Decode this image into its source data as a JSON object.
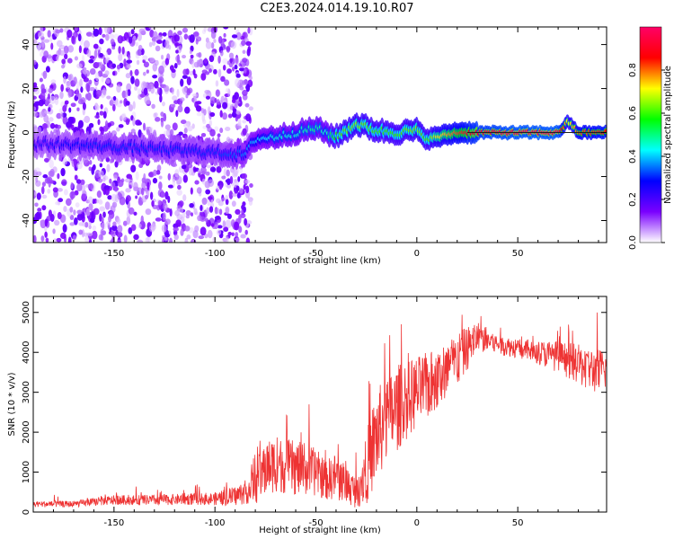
{
  "title": "C2E3.2024.014.19.10.R07",
  "chart_data": [
    {
      "type": "heatmap",
      "xlabel": "Height of straight line (km)",
      "ylabel": "Frequency (Hz)",
      "xlim": [
        -190,
        94
      ],
      "ylim": [
        -50,
        48
      ],
      "xticks": [
        -150,
        -100,
        -50,
        0,
        50
      ],
      "yticks": [
        -40,
        -20,
        0,
        20,
        40
      ],
      "xtick_labels": [
        "-150",
        "-100",
        "-50",
        "0",
        "50"
      ],
      "ytick_labels": [
        "-40",
        "-20",
        "0",
        "20",
        "40"
      ],
      "ridge": {
        "x": [
          -190,
          -160,
          -140,
          -120,
          -100,
          -85,
          -80,
          -70,
          -60,
          -50,
          -45,
          -40,
          -30,
          -20,
          -10,
          0,
          5,
          10,
          20,
          30,
          50,
          70,
          75,
          80,
          94
        ],
        "y": [
          -5,
          -6,
          -7,
          -8,
          -9,
          -10,
          -3,
          -2,
          0,
          2,
          0,
          -2,
          4,
          1,
          0,
          1,
          -3,
          -2,
          0,
          0,
          0,
          0,
          5,
          0,
          0
        ],
        "amplitude": [
          0.25,
          0.3,
          0.3,
          0.3,
          0.3,
          0.35,
          0.4,
          0.45,
          0.45,
          0.5,
          0.45,
          0.6,
          0.65,
          0.6,
          0.6,
          0.65,
          0.6,
          0.7,
          0.8,
          0.9,
          0.95,
          0.95,
          0.7,
          0.8,
          0.85
        ]
      }
    },
    {
      "type": "line",
      "xlabel": "Height of straight line (km)",
      "ylabel": "SNR (10 * v/v)",
      "xlim": [
        -190,
        94
      ],
      "ylim": [
        0,
        5400
      ],
      "xticks": [
        -150,
        -100,
        -50,
        0,
        50
      ],
      "yticks": [
        0,
        1000,
        2000,
        3000,
        4000,
        5000
      ],
      "xtick_labels": [
        "-150",
        "-100",
        "-50",
        "0",
        "50"
      ],
      "ytick_labels": [
        "0",
        "1000",
        "2000",
        "3000",
        "4000",
        "5000"
      ],
      "series": [
        {
          "name": "SNR",
          "color": "#ee3333",
          "x": [
            -190,
            -170,
            -150,
            -130,
            -110,
            -100,
            -90,
            -85,
            -80,
            -75,
            -70,
            -60,
            -50,
            -45,
            -40,
            -35,
            -30,
            -25,
            -20,
            -15,
            -10,
            -5,
            0,
            10,
            20,
            30,
            40,
            50,
            60,
            70,
            80,
            90,
            94
          ],
          "y": [
            200,
            200,
            300,
            300,
            330,
            330,
            400,
            500,
            700,
            1100,
            1200,
            1100,
            1000,
            800,
            900,
            700,
            500,
            1100,
            1900,
            2300,
            2600,
            2800,
            3000,
            3300,
            3800,
            4400,
            4200,
            4100,
            4000,
            3900,
            3700,
            3500,
            3600
          ],
          "noise": [
            80,
            80,
            120,
            130,
            150,
            160,
            250,
            300,
            500,
            700,
            700,
            700,
            600,
            500,
            600,
            500,
            400,
            900,
            1200,
            1100,
            1100,
            1000,
            900,
            800,
            700,
            400,
            250,
            250,
            300,
            400,
            500,
            600,
            500
          ]
        }
      ]
    }
  ],
  "colorbar": {
    "label": "Normalized spectral amplitude",
    "ticks": [
      0.0,
      0.2,
      0.4,
      0.6,
      0.8
    ],
    "tick_labels": [
      "0.0",
      "0.2",
      "0.4",
      "0.6",
      "0.8"
    ],
    "range": [
      0,
      1
    ],
    "colors": [
      "#ffffff",
      "#7a00ff",
      "#0000ff",
      "#00ffff",
      "#00ff00",
      "#ffff00",
      "#ff0000",
      "#ff0066"
    ]
  }
}
